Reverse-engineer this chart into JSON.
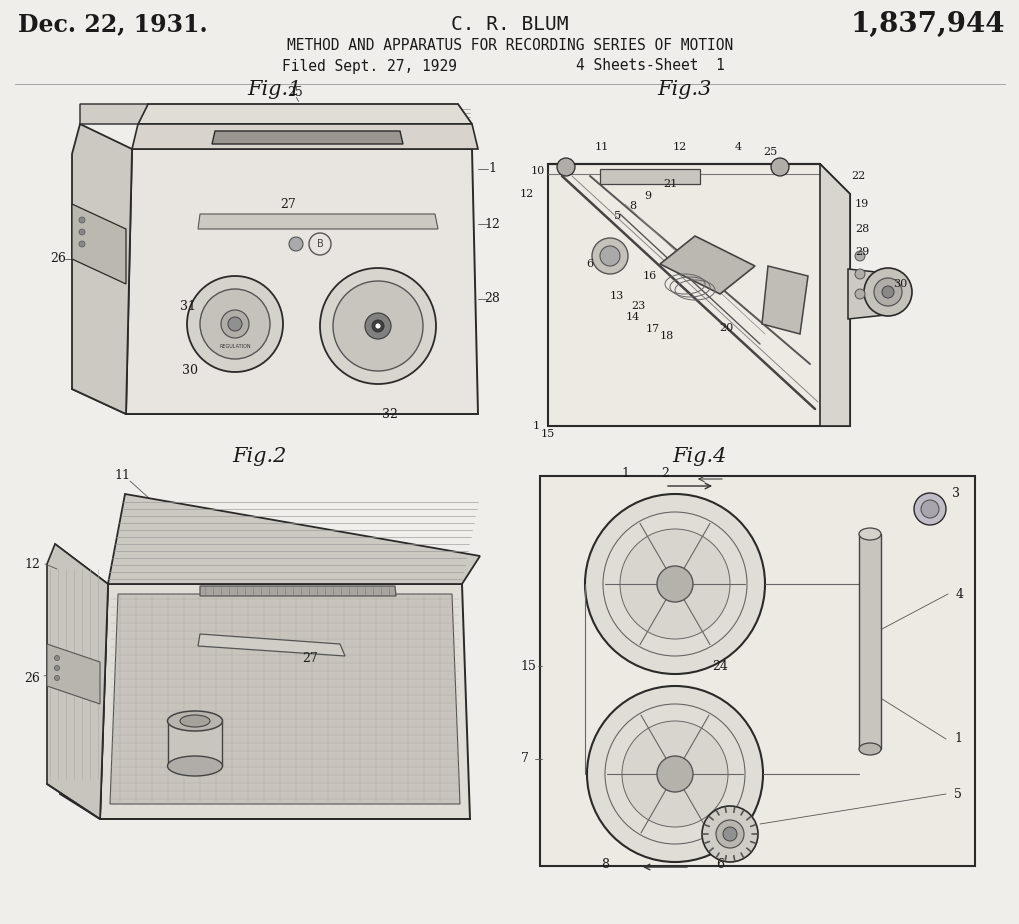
{
  "bg_color": "#f0eeea",
  "text_color": "#1a1a1a",
  "line_color": "#2a2a2a",
  "title_date": "Dec. 22, 1931.",
  "title_inventor": "C. R. BLUM",
  "title_patent": "1,837,944",
  "title_subject": "METHOD AND APPARATUS FOR RECORDING SERIES OF MOTION",
  "title_filed": "Filed Sept. 27, 1929",
  "title_sheets": "4 Sheets-Sheet  1",
  "fig1_label": "Fig.1",
  "fig2_label": "Fig.2",
  "fig3_label": "Fig.3",
  "fig4_label": "Fig.4"
}
